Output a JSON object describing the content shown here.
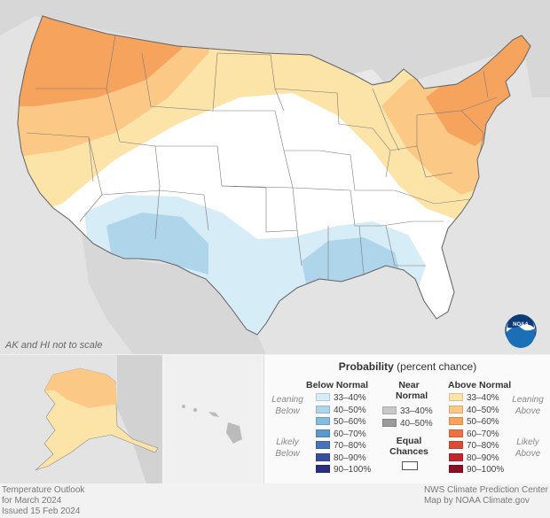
{
  "map": {
    "scale_note": "AK and HI not to scale",
    "logo_text": "NOAA"
  },
  "legend": {
    "title_bold": "Probability",
    "title_rest": " (percent chance)",
    "below_header": "Below Normal",
    "near_header_line1": "Near",
    "near_header_line2": "Normal",
    "above_header": "Above Normal",
    "leaning_below_line1": "Leaning",
    "leaning_below_line2": "Below",
    "likely_below_line1": "Likely",
    "likely_below_line2": "Below",
    "leaning_above_line1": "Leaning",
    "leaning_above_line2": "Above",
    "likely_above_line1": "Likely",
    "likely_above_line2": "Above",
    "equal_chances_line1": "Equal",
    "equal_chances_line2": "Chances",
    "below": [
      {
        "label": "33–40%",
        "color": "#d6ecf6"
      },
      {
        "label": "40–50%",
        "color": "#aed5ea"
      },
      {
        "label": "50–60%",
        "color": "#85bbdb"
      },
      {
        "label": "60–70%",
        "color": "#5c98c9"
      },
      {
        "label": "70–80%",
        "color": "#4874b7"
      },
      {
        "label": "80–90%",
        "color": "#3a4f9c"
      },
      {
        "label": "90–100%",
        "color": "#2b2e80"
      }
    ],
    "near": [
      {
        "label": "33–40%",
        "color": "#c8c8c8"
      },
      {
        "label": "40–50%",
        "color": "#9a9a9a"
      }
    ],
    "above": [
      {
        "label": "33–40%",
        "color": "#fce4a8"
      },
      {
        "label": "40–50%",
        "color": "#fbc985"
      },
      {
        "label": "50–60%",
        "color": "#f6a35e"
      },
      {
        "label": "60–70%",
        "color": "#ee7144"
      },
      {
        "label": "70–80%",
        "color": "#de4a3a"
      },
      {
        "label": "80–90%",
        "color": "#c0262f"
      },
      {
        "label": "90–100%",
        "color": "#8e0f22"
      }
    ]
  },
  "footer": {
    "left_line1": "Temperature Outlook",
    "left_line2": "for March 2024",
    "left_line3": "Issued 15 Feb 2024",
    "right_line1": "NWS Climate Prediction Center",
    "right_line2": "Map by NOAA Climate.gov"
  }
}
